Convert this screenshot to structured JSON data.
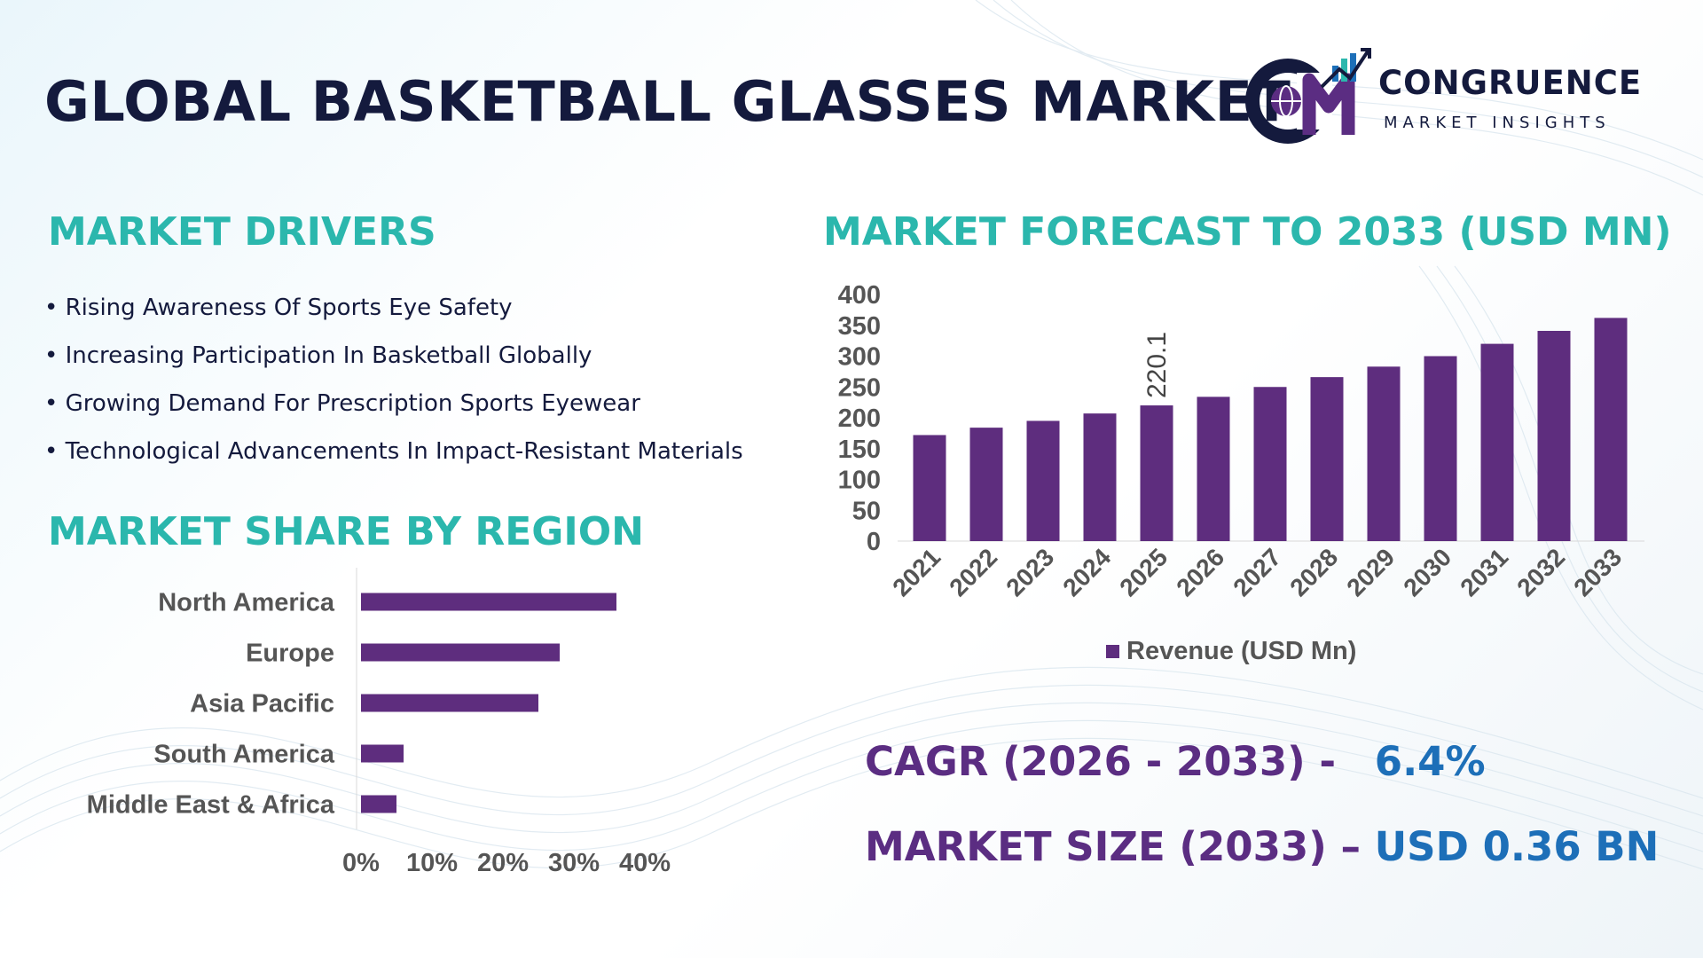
{
  "header": {
    "title": "GLOBAL BASKETBALL GLASSES MARKET",
    "logo_brand": "CONGRUENCE",
    "logo_tagline": "MARKET INSIGHTS"
  },
  "drivers": {
    "heading": "MARKET DRIVERS",
    "items": [
      "Rising Awareness Of Sports Eye Safety",
      "Increasing Participation In Basketball Globally",
      "Growing Demand For Prescription Sports Eyewear",
      "Technological Advancements In Impact-Resistant Materials"
    ]
  },
  "region": {
    "heading": "MARKET SHARE BY REGION"
  },
  "forecast": {
    "heading": "MARKET FORECAST TO 2033 (USD MN)"
  },
  "kpis": {
    "cagr_label": "CAGR (2026 - 2033) -",
    "cagr_value": "6.4%",
    "size_label": "MARKET SIZE (2033) –",
    "size_value": "USD 0.36 BN"
  },
  "colors": {
    "bar": "#5e2d7e",
    "heading": "#2bb7ad",
    "title": "#141a3d",
    "kpi_label": "#5b2d82",
    "kpi_value": "#1d6fb8"
  },
  "chart_data": [
    {
      "type": "bar",
      "orientation": "horizontal",
      "categories": [
        "North America",
        "Europe",
        "Asia Pacific",
        "South America",
        "Middle East & Africa"
      ],
      "values": [
        36,
        28,
        25,
        6,
        5
      ],
      "value_unit": "%",
      "xlim": [
        0,
        40
      ],
      "xticks": [
        "0%",
        "10%",
        "20%",
        "30%",
        "40%"
      ],
      "grid": false,
      "legend": "none"
    },
    {
      "type": "bar",
      "categories": [
        "2021",
        "2022",
        "2023",
        "2024",
        "2025",
        "2026",
        "2027",
        "2028",
        "2029",
        "2030",
        "2031",
        "2032",
        "2033"
      ],
      "series": [
        {
          "name": "Revenue (USD Mn)",
          "values": [
            172,
            184,
            195,
            207,
            220.1,
            234,
            250,
            266,
            283,
            300,
            320,
            341,
            362
          ]
        }
      ],
      "data_labels": [
        {
          "category": "2025",
          "text": "220.1"
        }
      ],
      "ylim": [
        0,
        400
      ],
      "yticks": [
        "0",
        "50",
        "100",
        "150",
        "200",
        "250",
        "300",
        "350",
        "400"
      ],
      "grid": false,
      "legend": "bottom"
    }
  ]
}
